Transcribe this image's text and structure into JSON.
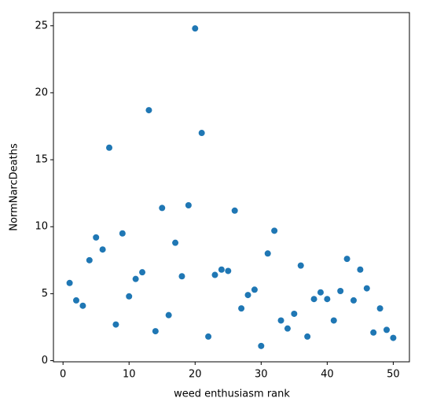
{
  "chart_data": {
    "type": "scatter",
    "xlabel": "weed enthusiasm rank",
    "ylabel": "NormNarcDeaths",
    "color": "#1f77b4",
    "x": [
      1,
      2,
      3,
      4,
      5,
      6,
      7,
      8,
      9,
      10,
      11,
      12,
      13,
      14,
      15,
      16,
      17,
      18,
      19,
      20,
      21,
      22,
      23,
      24,
      25,
      26,
      27,
      28,
      29,
      30,
      31,
      32,
      33,
      34,
      35,
      36,
      37,
      38,
      39,
      40,
      41,
      42,
      43,
      44,
      45,
      46,
      47,
      48,
      49,
      50
    ],
    "values": [
      5.8,
      4.5,
      4.1,
      7.5,
      9.2,
      8.3,
      15.9,
      2.7,
      9.5,
      4.8,
      6.1,
      6.6,
      18.7,
      2.2,
      11.4,
      3.4,
      8.8,
      6.3,
      11.6,
      24.8,
      17.0,
      1.8,
      6.4,
      6.8,
      6.7,
      11.2,
      3.9,
      4.9,
      5.3,
      1.1,
      8.0,
      9.7,
      3.0,
      2.4,
      3.5,
      7.1,
      1.8,
      4.6,
      5.1,
      4.6,
      3.0,
      5.2,
      7.6,
      4.5,
      6.8,
      5.4,
      2.1,
      3.9,
      2.3,
      1.7
    ],
    "xlim": [
      -1.45,
      52.45
    ],
    "xticks": [
      0,
      10,
      20,
      30,
      40,
      50
    ],
    "ylim": [
      -0.085,
      25.985
    ],
    "yticks": [
      0,
      5,
      10,
      15,
      20,
      25
    ],
    "grid": false
  }
}
